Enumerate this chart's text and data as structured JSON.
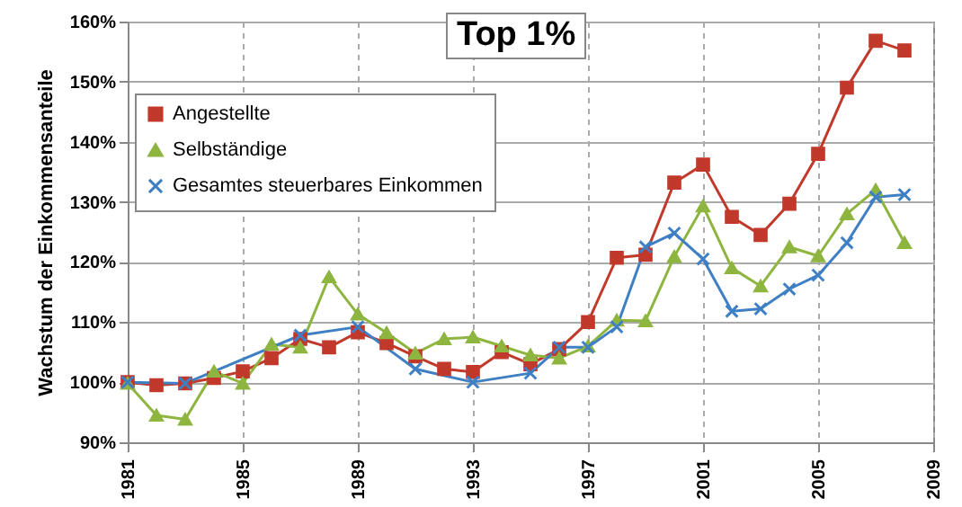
{
  "chart_data": {
    "type": "line",
    "title": "Top 1%",
    "ylabel": "Wachstum der Einkommensanteile",
    "x": [
      1981,
      1982,
      1983,
      1984,
      1985,
      1986,
      1987,
      1988,
      1989,
      1990,
      1991,
      1992,
      1993,
      1994,
      1995,
      1996,
      1997,
      1998,
      1999,
      2000,
      2001,
      2002,
      2003,
      2004,
      2005,
      2006,
      2007,
      2008
    ],
    "series": [
      {
        "name": "Angestellte",
        "color": "#c0392b",
        "marker": "square",
        "values": [
          100,
          99.5,
          99.8,
          100.7,
          101.8,
          104,
          107.2,
          105.8,
          108.3,
          106.5,
          104.3,
          102.2,
          101.7,
          105,
          103,
          105.5,
          110,
          120.7,
          121.2,
          133.2,
          136.2,
          127.5,
          124.5,
          129.7,
          138,
          149,
          156.8,
          155.2
        ]
      },
      {
        "name": "Selbständige",
        "color": "#8db53f",
        "marker": "triangle",
        "values": [
          99.8,
          94.5,
          93.8,
          101.8,
          99.8,
          106.3,
          105.8,
          117.5,
          111.3,
          108.2,
          104.8,
          107.2,
          107.5,
          106,
          104.5,
          104,
          106,
          110.3,
          110.2,
          120.9,
          129.3,
          119,
          116,
          122.5,
          121,
          128,
          132,
          123.2
        ]
      },
      {
        "name": "Gesamtes steuerbares Einkommen",
        "color": "#3f7fc4",
        "marker": "cross",
        "x": [
          1981,
          1983,
          1987,
          1989,
          1991,
          1993,
          1995,
          1996,
          1997,
          1998,
          1999,
          2000,
          2001,
          2002,
          2003,
          2004,
          2005,
          2006,
          2007,
          2008
        ],
        "values": [
          100,
          99.8,
          107.8,
          109.2,
          102.2,
          100,
          101.5,
          105.8,
          105.8,
          109.2,
          122.5,
          124.8,
          120.5,
          111.8,
          112.2,
          115.5,
          117.8,
          123.2,
          130.8,
          131.2
        ]
      }
    ],
    "xlim": [
      1981,
      2009
    ],
    "xticks": [
      1981,
      1985,
      1989,
      1993,
      1997,
      2001,
      2005,
      2009
    ],
    "ylim": [
      90,
      160
    ],
    "yticks": [
      {
        "value": 90,
        "label": "90%"
      },
      {
        "value": 100,
        "label": "100%"
      },
      {
        "value": 110,
        "label": "110%"
      },
      {
        "value": 120,
        "label": "120%"
      },
      {
        "value": 130,
        "label": "130%"
      },
      {
        "value": 140,
        "label": "140%"
      },
      {
        "value": 150,
        "label": "150%"
      },
      {
        "value": 160,
        "label": "160%"
      }
    ],
    "grid": true,
    "legend": "top left",
    "line_style": "solid"
  }
}
